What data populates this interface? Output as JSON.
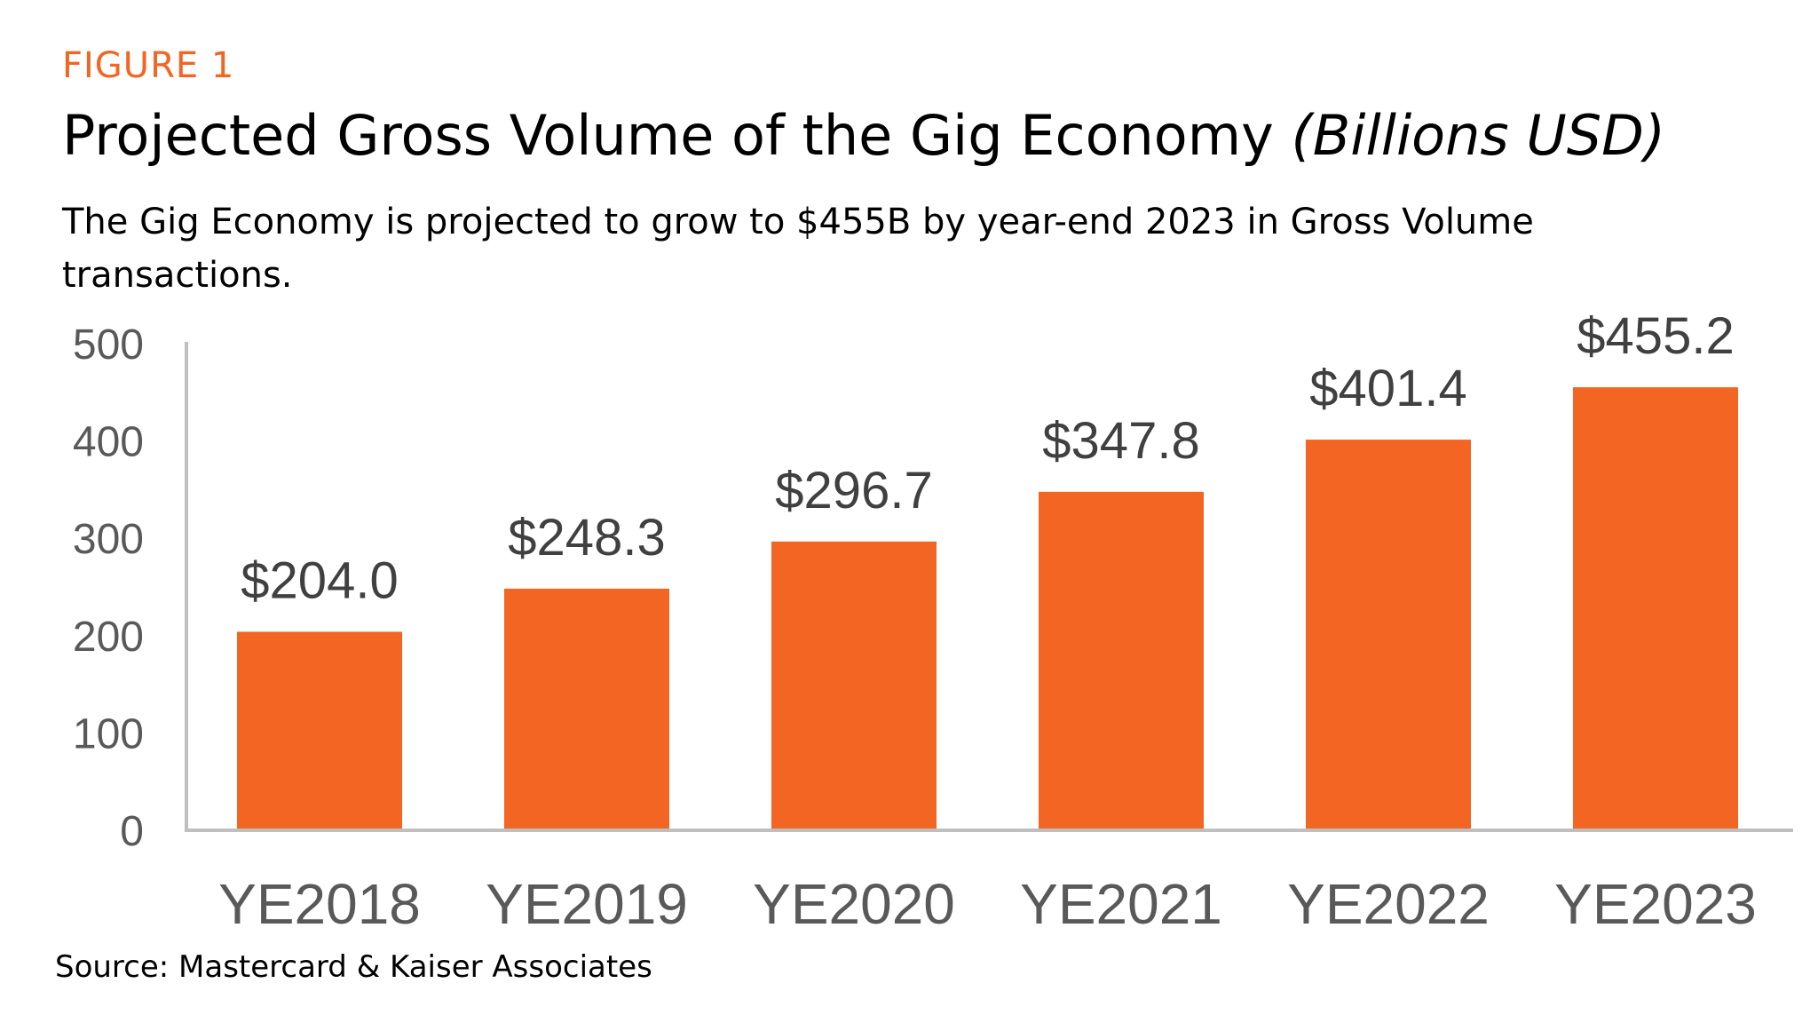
{
  "figure_label": "FIGURE 1",
  "title_main": "Projected Gross Volume of the Gig Economy",
  "title_unit": "(Billions USD)",
  "subtitle": "The Gig Economy is projected to grow to $455B by year-end 2023 in Gross Volume transactions.",
  "source": "Source: Mastercard & Kaiser Associates",
  "colors": {
    "accent": "#f26522",
    "bar": "#f26522",
    "axis": "#bfbfbf",
    "tick_text": "#595959",
    "label_text": "#404040"
  },
  "chart_data": {
    "type": "bar",
    "title": "Projected Gross Volume of the Gig Economy (Billions USD)",
    "xlabel": "",
    "ylabel": "",
    "categories": [
      "YE2018",
      "YE2019",
      "YE2020",
      "YE2021",
      "YE2022",
      "YE2023"
    ],
    "values": [
      204.0,
      248.3,
      296.7,
      347.8,
      401.4,
      455.2
    ],
    "data_labels": [
      "$204.0",
      "$248.3",
      "$296.7",
      "$347.8",
      "$401.4",
      "$455.2"
    ],
    "ylim": [
      0,
      500
    ],
    "yticks": [
      0,
      100,
      200,
      300,
      400,
      500
    ],
    "grid": false,
    "legend": "none"
  }
}
